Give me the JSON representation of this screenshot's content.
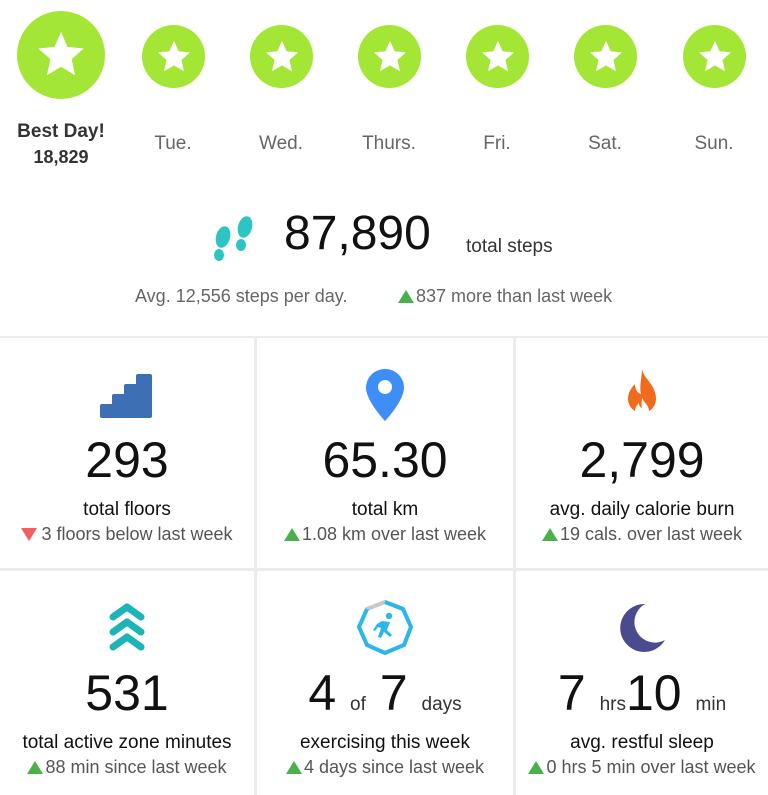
{
  "days": [
    {
      "label": "Best Day!",
      "value": "18,829",
      "best": true
    },
    {
      "label": "Tue."
    },
    {
      "label": "Wed."
    },
    {
      "label": "Thurs."
    },
    {
      "label": "Fri."
    },
    {
      "label": "Sat."
    },
    {
      "label": "Sun."
    }
  ],
  "summary": {
    "steps": "87,890",
    "steps_unit": "total steps",
    "average": "Avg. 12,556 steps per day.",
    "change": "837 more than last week"
  },
  "stats": [
    {
      "icon": "stairs-icon",
      "value": "293",
      "label": "total floors",
      "change": "3 floors below last week",
      "direction": "down"
    },
    {
      "icon": "location-pin-icon",
      "value": "65.30",
      "label": "total km",
      "change": "1.08 km over last week",
      "direction": "up"
    },
    {
      "icon": "flame-icon",
      "value": "2,799",
      "label": "avg. daily calorie burn",
      "change": "19 cals. over last week",
      "direction": "up"
    },
    {
      "icon": "active-zone-chevrons-icon",
      "value": "531",
      "label": "total active zone minutes",
      "change": "88 min since last week",
      "direction": "up"
    },
    {
      "icon": "exercise-runner-icon",
      "value_a": "4",
      "of": "of",
      "value_b": "7",
      "unit": "days",
      "label": "exercising this week",
      "change": "4 days since last week",
      "direction": "up"
    },
    {
      "icon": "moon-icon",
      "hrs": "7",
      "hrs_unit": "hrs",
      "min": "10",
      "min_unit": "min",
      "label": "avg. restful sleep",
      "change": "0 hrs 5 min over last week",
      "direction": "up"
    }
  ],
  "colors": {
    "goal_green": "#a3e635",
    "up_green": "#49b04a",
    "down_red": "#f25f5c",
    "stairs_blue": "#3d6fb5",
    "pin_blue": "#3e8ef7",
    "flame_orange": "#f26b1d",
    "zone_teal": "#1bb5b5",
    "moon_navy": "#4a4b8f"
  }
}
